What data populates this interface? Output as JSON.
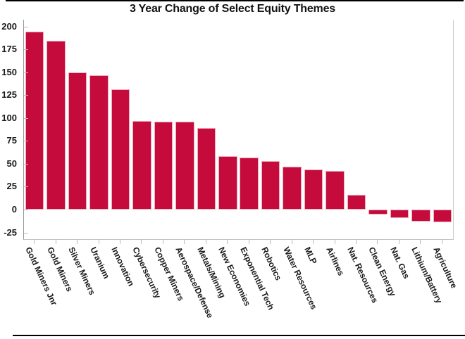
{
  "window": {
    "background": "#ffffff",
    "frame_color": "#000000"
  },
  "chart_data": {
    "type": "bar",
    "title": "3 Year Change of Select Equity Themes",
    "categories": [
      "Gold Miners Jnr",
      "Gold Miners",
      "Silver Miners",
      "Uranium",
      "Innovation",
      "Cybersecurity",
      "Copper Miners",
      "Aerospace/Defense",
      "Metals/Mining",
      "New Economies",
      "Exponential Tech",
      "Robotics",
      "Water Resources",
      "MLP",
      "Airlines",
      "Nat. Resources",
      "Clean Energy",
      "Nat. Gas",
      "Lithium/Battery",
      "Agriculture"
    ],
    "values": [
      194,
      184,
      150,
      147,
      131,
      97,
      96,
      96,
      89,
      58,
      57,
      53,
      47,
      44,
      42,
      16,
      -5,
      -9,
      -13,
      -14
    ],
    "xlabel": "",
    "ylabel": "",
    "yticks": [
      -25,
      0,
      25,
      50,
      75,
      100,
      125,
      150,
      175,
      200
    ],
    "ylim": [
      -32.2,
      207.3
    ],
    "grid": false,
    "legend": null,
    "bar_color": "#C40B3B",
    "bar_edge_color": "#EFA9B8",
    "tick_color": "#b9b9b9",
    "axis_color": "#999999",
    "text_color": "#1a1a1a",
    "x_label_rotation_deg": 65
  }
}
